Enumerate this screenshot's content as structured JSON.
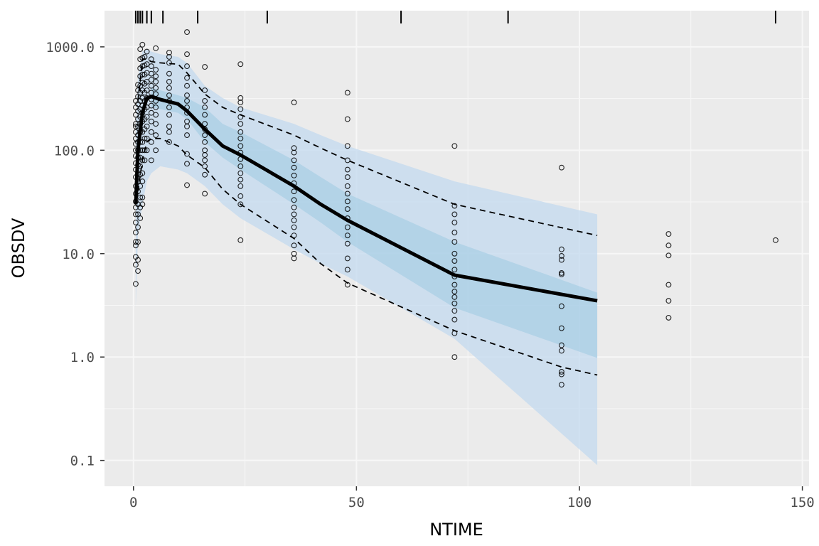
{
  "chart_data": {
    "type": "scatter",
    "title": "",
    "xlabel": "NTIME",
    "ylabel": "OBSDV",
    "xlim": [
      -6.5,
      151.5
    ],
    "ylim_log10": [
      -1.25,
      3.35
    ],
    "y_scale": "log10",
    "x_ticks": [
      0,
      50,
      100,
      150
    ],
    "x_tick_labels": [
      "0",
      "50",
      "100",
      "150"
    ],
    "y_ticks": [
      0.1,
      1,
      10,
      100,
      1000
    ],
    "y_tick_labels": [
      "0.1",
      "1.0",
      "10.0",
      "100.0",
      "1000.0"
    ],
    "grid": true,
    "legend": "none",
    "colors": {
      "panel": "#ebebeb",
      "grid": "#f7f7f7",
      "outer_band": "#c6dbef",
      "inner_band": "#9ecae1",
      "median_line": "#000000",
      "points": "#000000"
    },
    "rug_x": [
      0.5,
      1,
      1.5,
      2,
      3,
      4,
      6.6,
      14.4,
      30,
      60,
      84,
      144
    ],
    "median_sim": {
      "x": [
        0.5,
        1,
        2,
        3,
        4,
        6,
        10,
        12,
        16,
        20,
        24,
        36,
        42,
        48,
        72,
        104
      ],
      "y": [
        30,
        100,
        230,
        320,
        330,
        310,
        280,
        240,
        160,
        110,
        90,
        45,
        30,
        21,
        6.2,
        3.5
      ]
    },
    "obs_percentiles": {
      "upper": {
        "x": [
          1,
          2,
          3,
          4,
          6,
          10,
          12,
          16,
          20,
          24,
          36,
          42,
          48,
          72,
          104
        ],
        "y": [
          300,
          760,
          760,
          720,
          700,
          680,
          560,
          350,
          260,
          220,
          140,
          105,
          80,
          30,
          15
        ]
      },
      "lower": {
        "x": [
          1,
          2,
          3,
          4,
          6,
          10,
          12,
          16,
          20,
          24,
          36,
          42,
          48,
          72,
          96,
          104
        ],
        "y": [
          40,
          80,
          120,
          130,
          130,
          110,
          90,
          68,
          42,
          30,
          14,
          8,
          5.2,
          1.8,
          0.8,
          0.67
        ]
      }
    },
    "pi_outer": {
      "x": [
        0.5,
        1,
        2,
        3,
        4,
        6,
        10,
        12,
        16,
        20,
        24,
        36,
        42,
        48,
        72,
        104
      ],
      "upper": [
        150,
        500,
        900,
        950,
        900,
        850,
        800,
        700,
        420,
        320,
        260,
        180,
        140,
        110,
        50,
        24
      ],
      "lower": [
        3,
        15,
        30,
        50,
        60,
        70,
        65,
        60,
        45,
        30,
        22,
        11,
        8,
        6,
        1.5,
        0.09
      ]
    },
    "pi_inner": {
      "x": [
        4,
        6,
        10,
        12,
        16,
        20,
        24,
        36,
        42,
        48,
        72,
        104
      ],
      "upper": [
        400,
        380,
        340,
        320,
        260,
        180,
        150,
        80,
        55,
        38,
        13,
        4.2
      ],
      "lower": [
        260,
        250,
        230,
        200,
        120,
        85,
        65,
        30,
        20,
        13,
        3,
        0.98
      ]
    },
    "observed": [
      {
        "t": 0.5,
        "y": [
          5.1,
          7.8,
          9.3,
          12,
          13,
          16,
          20,
          24,
          28,
          32,
          38,
          45,
          55,
          65,
          75,
          88,
          100,
          115,
          130,
          150,
          170,
          180,
          220,
          260,
          300
        ]
      },
      {
        "t": 1,
        "y": [
          6.8,
          8.7,
          13,
          18,
          24,
          30,
          40,
          50,
          60,
          72,
          85,
          100,
          120,
          140,
          170,
          200,
          240,
          280,
          330,
          380,
          430
        ]
      },
      {
        "t": 1.5,
        "y": [
          22,
          28,
          35,
          45,
          58,
          70,
          85,
          100,
          120,
          150,
          180,
          210,
          250,
          300,
          360,
          420,
          520,
          620,
          760,
          950
        ]
      },
      {
        "t": 2,
        "y": [
          30,
          35,
          50,
          60,
          80,
          100,
          120,
          150,
          190,
          230,
          270,
          320,
          380,
          450,
          540,
          650,
          780,
          1050
        ]
      },
      {
        "t": 2.5,
        "y": [
          80,
          100,
          130,
          160,
          200,
          250,
          300,
          360,
          440,
          540,
          660,
          800
        ]
      },
      {
        "t": 3,
        "y": [
          100,
          130,
          170,
          210,
          260,
          320,
          380,
          460,
          560,
          680,
          900
        ]
      },
      {
        "t": 4,
        "y": [
          80,
          120,
          150,
          190,
          230,
          270,
          310,
          360,
          420,
          480,
          550,
          650,
          760
        ]
      },
      {
        "t": 5,
        "y": [
          100,
          140,
          180,
          220,
          260,
          300,
          350,
          400,
          460,
          520,
          600,
          970
        ]
      },
      {
        "t": 8,
        "y": [
          120,
          150,
          170,
          220,
          260,
          300,
          340,
          400,
          460,
          550,
          700,
          800,
          880
        ]
      },
      {
        "t": 12,
        "y": [
          46,
          74,
          92,
          140,
          170,
          190,
          230,
          260,
          300,
          340,
          420,
          500,
          650,
          850,
          1390
        ]
      },
      {
        "t": 16,
        "y": [
          38,
          58,
          70,
          80,
          90,
          100,
          120,
          140,
          160,
          180,
          220,
          260,
          300,
          380,
          640
        ]
      },
      {
        "t": 24,
        "y": [
          13.5,
          30,
          36,
          45,
          52,
          60,
          70,
          82,
          95,
          110,
          130,
          150,
          180,
          210,
          250,
          290,
          320,
          680
        ]
      },
      {
        "t": 36,
        "y": [
          9,
          10,
          12,
          15,
          18,
          21,
          24,
          28,
          33,
          40,
          48,
          57,
          68,
          80,
          95,
          105,
          290
        ]
      },
      {
        "t": 48,
        "y": [
          5,
          7,
          9,
          12.5,
          15,
          18,
          22,
          27,
          32,
          38,
          45,
          55,
          65,
          80,
          110,
          200,
          360
        ]
      },
      {
        "t": 72,
        "y": [
          1,
          1.7,
          2.3,
          2.8,
          3.3,
          3.8,
          4.3,
          5,
          6,
          7,
          8.5,
          10,
          13,
          16,
          20,
          24,
          29,
          110
        ]
      },
      {
        "t": 96,
        "y": [
          0.54,
          0.68,
          0.72,
          1.15,
          1.3,
          1.9,
          3.1,
          6.3,
          6.5,
          8.7,
          9.5,
          11,
          68
        ]
      },
      {
        "t": 120,
        "y": [
          2.4,
          3.5,
          5,
          9.6,
          12,
          15.5
        ]
      },
      {
        "t": 144,
        "y": [
          13.5
        ]
      }
    ]
  }
}
